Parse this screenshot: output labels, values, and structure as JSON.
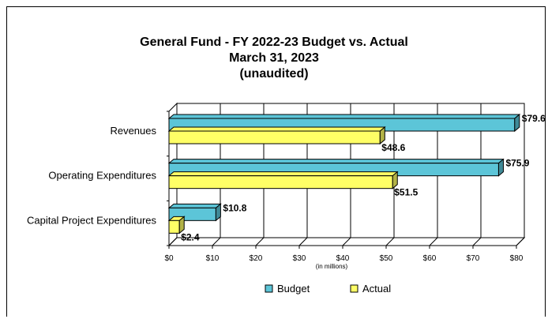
{
  "chart_data": {
    "type": "bar",
    "orientation": "horizontal",
    "title": [
      "General Fund - FY 2022-23 Budget vs. Actual",
      "March 31, 2023",
      "(unaudited)"
    ],
    "categories": [
      "Revenues",
      "Operating Expenditures",
      "Capital Project Expenditures"
    ],
    "series": [
      {
        "name": "Budget",
        "values": [
          79.6,
          75.9,
          10.8
        ],
        "labels": [
          "$79.6",
          "$75.9",
          "$10.8"
        ],
        "color": "#5CC5D8"
      },
      {
        "name": "Actual",
        "values": [
          48.6,
          51.5,
          2.4
        ],
        "labels": [
          "$48.6",
          "$51.5",
          "$2.4"
        ],
        "color": "#FFFF66"
      }
    ],
    "xlim": [
      0,
      80
    ],
    "xticks": [
      "$0",
      "$10",
      "$20",
      "$30",
      "$40",
      "$50",
      "$60",
      "$70",
      "$80"
    ],
    "xlabel": "(in millions)",
    "grid": true,
    "legend_position": "bottom",
    "style": "3d"
  }
}
